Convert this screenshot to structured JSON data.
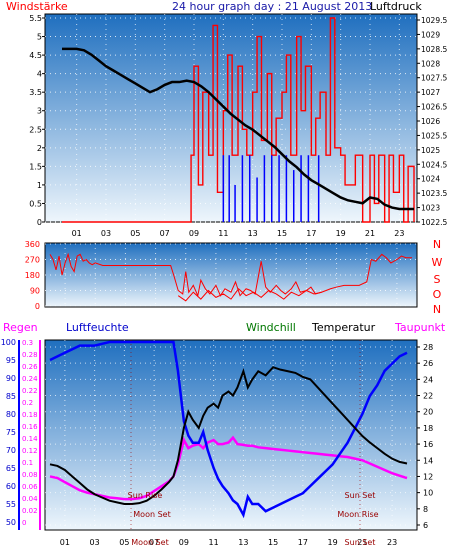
{
  "header": {
    "left_label": "Windstärke",
    "title": "24 hour graph day : 21 August 2013",
    "right_label": "Luftdruck"
  },
  "bottom_header": {
    "regen": "Regen",
    "luftfeuchte": "Luftfeuchte",
    "windchill": "Windchill",
    "temperatur": "Temperatur",
    "taupunkt": "Taupunkt"
  },
  "colors": {
    "wind": "#ff0000",
    "gust_blue": "#0000ff",
    "pressure": "#000000",
    "direction": "#ff0000",
    "humidity": "#0000ff",
    "temperature": "#000000",
    "windchill": "#008000",
    "dewpoint": "#ff00ff",
    "plot_top": "#1f6fbf",
    "plot_bottom": "#eef6fc",
    "title": "#1a1aa8"
  },
  "chart_data": [
    {
      "type": "line",
      "name": "wind_pressure",
      "x_ticks": [
        "01",
        "03",
        "05",
        "07",
        "09",
        "11",
        "13",
        "15",
        "17",
        "19",
        "21",
        "23"
      ],
      "left_axis": {
        "ticks": [
          "0",
          "0.5",
          "1",
          "1.5",
          "2",
          "2.5",
          "3",
          "3.5",
          "4",
          "4.5",
          "5",
          "5.5"
        ],
        "ylim": [
          0,
          5.5
        ]
      },
      "right_axis": {
        "ticks": [
          "1022.5",
          "1023",
          "1023.5",
          "1024",
          "1024.5",
          "1025",
          "1025.5",
          "1026",
          "1026.5",
          "1027",
          "1027.5",
          "1028",
          "1028.5",
          "1029",
          "1029.5"
        ],
        "ylim": [
          1022.5,
          1029.5
        ]
      },
      "pressure": {
        "x": [
          0,
          0.5,
          1,
          1.5,
          2,
          2.5,
          3,
          3.5,
          4,
          4.5,
          5,
          5.5,
          6,
          6.5,
          7,
          7.5,
          8,
          8.5,
          9,
          9.5,
          10,
          10.5,
          11,
          11.5,
          12,
          12.5,
          13,
          13.5,
          14,
          14.5,
          15,
          15.5,
          16,
          16.5,
          17,
          17.5,
          18,
          18.5,
          19,
          19.5,
          20,
          20.5,
          21,
          21.5,
          22,
          22.5,
          23,
          23.5,
          24
        ],
        "y": [
          1028.5,
          1028.5,
          1028.5,
          1028.45,
          1028.3,
          1028.1,
          1027.9,
          1027.75,
          1027.6,
          1027.45,
          1027.3,
          1027.15,
          1027.0,
          1027.1,
          1027.25,
          1027.35,
          1027.35,
          1027.4,
          1027.35,
          1027.2,
          1027.0,
          1026.75,
          1026.5,
          1026.25,
          1026.05,
          1025.85,
          1025.7,
          1025.5,
          1025.3,
          1025.1,
          1024.85,
          1024.6,
          1024.4,
          1024.15,
          1023.95,
          1023.8,
          1023.65,
          1023.5,
          1023.35,
          1023.25,
          1023.2,
          1023.15,
          1023.35,
          1023.3,
          1023.1,
          1023.0,
          1022.95,
          1022.95,
          1022.95
        ]
      },
      "wind": {
        "x": [
          0,
          8.5,
          8.8,
          9,
          9.3,
          9.6,
          10,
          10.3,
          10.6,
          11,
          11.3,
          11.6,
          12,
          12.3,
          12.6,
          13,
          13.3,
          13.6,
          14,
          14.3,
          14.6,
          15,
          15.3,
          15.6,
          16,
          16.3,
          16.6,
          17,
          17.3,
          17.6,
          18,
          18.3,
          18.6,
          19,
          19.3,
          20,
          20.5,
          21,
          21.3,
          21.6,
          22,
          22.3,
          22.6,
          23,
          23.3,
          23.6,
          24
        ],
        "y": [
          0,
          0,
          1.8,
          4.2,
          1.0,
          3.5,
          1.8,
          5.3,
          0.8,
          3.0,
          4.5,
          1.8,
          4.2,
          2.5,
          1.8,
          3.5,
          5.0,
          2.2,
          4.0,
          1.8,
          2.8,
          3.5,
          4.5,
          1.8,
          5.0,
          3.0,
          4.2,
          1.8,
          2.8,
          3.5,
          1.8,
          5.5,
          2.0,
          1.8,
          1.0,
          1.8,
          0,
          1.8,
          0.5,
          1.8,
          0,
          1.8,
          0.8,
          1.8,
          0,
          1.5,
          0
        ]
      },
      "gusts": {
        "x": [
          11,
          11.4,
          11.8,
          12.3,
          12.8,
          13.3,
          13.8,
          14.3,
          14.8,
          15.3,
          15.8,
          16.3,
          16.8,
          17.5
        ],
        "y": [
          1.8,
          1.8,
          1.0,
          1.8,
          1.8,
          1.2,
          1.8,
          1.8,
          1.8,
          1.8,
          1.4,
          1.8,
          1.8,
          1.8
        ]
      }
    },
    {
      "type": "line",
      "name": "wind_direction",
      "y_ticks": [
        "0",
        "90",
        "180",
        "270",
        "360"
      ],
      "ylim": [
        0,
        360
      ],
      "compass_labels": [
        "N",
        "W",
        "S",
        "O",
        "N"
      ],
      "direction": {
        "x": [
          0,
          0.2,
          0.4,
          0.6,
          0.8,
          1.0,
          1.2,
          1.4,
          1.6,
          1.8,
          2.0,
          2.2,
          2.4,
          2.6,
          2.8,
          3.0,
          3.5,
          4.0,
          4.5,
          5.0,
          5.5,
          6.0,
          6.5,
          7.0,
          7.5,
          8.0,
          8.2,
          8.5,
          8.8,
          9.0,
          9.2,
          9.5,
          9.8,
          10.0,
          10.3,
          10.6,
          11.0,
          11.3,
          11.6,
          12.0,
          12.3,
          12.6,
          13.0,
          13.3,
          13.6,
          14.0,
          14.3,
          14.6,
          15.0,
          15.3,
          15.6,
          16.0,
          16.3,
          16.6,
          17.0,
          17.3,
          17.6,
          18.0,
          18.3,
          18.6,
          19.0,
          19.5,
          20.0,
          20.5,
          21.0,
          21.3,
          21.6,
          22.0,
          22.3,
          22.6,
          23.0,
          23.3,
          23.6,
          24.0
        ],
        "y": [
          300,
          270,
          210,
          290,
          180,
          250,
          300,
          230,
          200,
          290,
          300,
          260,
          270,
          250,
          240,
          250,
          235,
          235,
          235,
          235,
          235,
          235,
          235,
          235,
          235,
          235,
          180,
          90,
          70,
          200,
          80,
          120,
          60,
          150,
          100,
          70,
          120,
          60,
          100,
          80,
          140,
          60,
          100,
          90,
          70,
          260,
          110,
          80,
          120,
          90,
          70,
          100,
          140,
          80,
          90,
          110,
          70,
          80,
          90,
          100,
          110,
          120,
          120,
          120,
          140,
          270,
          260,
          300,
          280,
          250,
          270,
          290,
          280,
          280
        ]
      },
      "direction_low": {
        "x": [
          8.5,
          9.0,
          9.5,
          10.0,
          10.5,
          11.0,
          11.5,
          12.0,
          12.5,
          13.0,
          13.5,
          14.0,
          14.5,
          15.0,
          15.5,
          16.0,
          16.5,
          17.0,
          17.5,
          18.0
        ],
        "y": [
          60,
          30,
          80,
          40,
          90,
          50,
          70,
          40,
          100,
          60,
          80,
          50,
          90,
          70,
          40,
          80,
          60,
          90,
          70,
          80
        ]
      }
    },
    {
      "type": "line",
      "name": "temperature_humidity",
      "humidity_axis": {
        "ticks": [
          "50",
          "55",
          "60",
          "65",
          "70",
          "75",
          "80",
          "85",
          "90",
          "95",
          "100"
        ],
        "ylim": [
          50,
          100
        ]
      },
      "rain_axis": {
        "ticks": [
          "0",
          "0.02",
          "0.04",
          "0.06",
          "0.08",
          "0.1",
          "0.12",
          "0.14",
          "0.16",
          "0.18",
          "0.2",
          "0.22",
          "0.24",
          "0.26",
          "0.28",
          "0.3"
        ],
        "ylim": [
          0,
          0.3
        ]
      },
      "temp_axis": {
        "ticks": [
          "6",
          "8",
          "10",
          "12",
          "14",
          "16",
          "18",
          "20",
          "22",
          "24",
          "26",
          "28"
        ],
        "ylim": [
          6,
          28
        ]
      },
      "x_ticks": [
        "01",
        "03",
        "05",
        "07",
        "09",
        "11",
        "13",
        "15",
        "17",
        "19",
        "21",
        "23"
      ],
      "annotations": [
        "Sun Rise",
        "Moon Set",
        "Moon Set",
        "Sun Set",
        "Moon Rise",
        "Sun Set"
      ],
      "temperature": {
        "x": [
          0,
          0.5,
          1,
          1.5,
          2,
          2.5,
          3,
          3.5,
          4,
          4.5,
          5,
          5.5,
          6,
          6.5,
          7,
          7.5,
          8,
          8.3,
          8.6,
          9,
          9.3,
          9.6,
          10,
          10.3,
          10.6,
          11,
          11.3,
          11.6,
          12,
          12.3,
          12.6,
          13,
          13.3,
          13.6,
          14,
          14.5,
          15,
          15.5,
          16,
          16.5,
          17,
          17.5,
          18,
          18.5,
          19,
          19.5,
          20,
          20.5,
          21,
          21.5,
          22,
          22.5,
          23,
          23.5,
          24
        ],
        "y": [
          13.5,
          13.3,
          12.8,
          12.0,
          11.2,
          10.4,
          9.8,
          9.4,
          9.0,
          8.8,
          8.6,
          8.6,
          8.7,
          9.0,
          9.6,
          10.4,
          11.3,
          12.0,
          14.0,
          18.0,
          20.0,
          19.0,
          18.0,
          19.5,
          20.5,
          21.0,
          20.5,
          22.0,
          22.5,
          22.0,
          23.0,
          25.0,
          23.0,
          24.0,
          25.0,
          24.5,
          25.5,
          25.2,
          25.0,
          24.8,
          24.3,
          24.0,
          23.0,
          22.0,
          21.0,
          20.0,
          19.0,
          18.0,
          17.0,
          16.2,
          15.5,
          14.8,
          14.2,
          13.8,
          13.6
        ]
      },
      "humidity": {
        "x": [
          0,
          0.5,
          1,
          1.5,
          2,
          2.5,
          3,
          3.5,
          4,
          4.5,
          5,
          5.5,
          6,
          6.5,
          7,
          7.5,
          8,
          8.3,
          8.6,
          9,
          9.3,
          9.6,
          10,
          10.3,
          10.6,
          11,
          11.3,
          11.6,
          12,
          12.3,
          12.6,
          13,
          13.3,
          13.6,
          14,
          14.5,
          15,
          15.5,
          16,
          16.5,
          17,
          17.5,
          18,
          18.5,
          19,
          19.5,
          20,
          20.5,
          21,
          21.5,
          22,
          22.5,
          23,
          23.5,
          24
        ],
        "y": [
          95,
          96,
          97,
          98,
          99,
          99,
          99,
          99.5,
          100,
          100,
          100,
          100,
          100,
          100,
          100,
          100,
          100,
          100,
          92,
          78,
          74,
          72,
          72,
          75,
          70,
          65,
          62,
          60,
          58,
          56,
          55,
          52,
          57,
          55,
          55,
          53,
          54,
          55,
          56,
          57,
          58,
          60,
          62,
          64,
          66,
          69,
          72,
          76,
          80,
          85,
          88,
          92,
          94,
          96,
          97
        ]
      },
      "dewpoint": {
        "x": [
          0,
          0.5,
          1,
          1.5,
          2,
          2.5,
          3,
          3.5,
          4,
          4.5,
          5,
          5.5,
          6,
          6.5,
          7,
          7.5,
          8,
          8.3,
          8.6,
          9,
          9.3,
          9.6,
          10,
          10.3,
          10.6,
          11,
          11.3,
          11.6,
          12,
          12.3,
          12.6,
          13,
          13.3,
          13.6,
          14,
          14.5,
          15,
          15.5,
          16,
          16.5,
          17,
          17.5,
          18,
          18.5,
          19,
          19.5,
          20,
          20.5,
          21,
          21.5,
          22,
          22.5,
          23,
          23.5,
          24
        ],
        "y": [
          12.0,
          11.8,
          11.3,
          10.8,
          10.3,
          10.0,
          9.8,
          9.6,
          9.4,
          9.3,
          9.2,
          9.2,
          9.3,
          9.6,
          10.2,
          10.8,
          11.4,
          12.0,
          13.5,
          16.5,
          15.5,
          15.8,
          16.0,
          15.5,
          16.2,
          16.5,
          16.0,
          16.0,
          16.2,
          16.8,
          16.0,
          15.9,
          15.8,
          15.8,
          15.6,
          15.5,
          15.4,
          15.3,
          15.2,
          15.1,
          15.0,
          14.9,
          14.8,
          14.7,
          14.6,
          14.5,
          14.4,
          14.2,
          14.0,
          13.6,
          13.2,
          12.8,
          12.4,
          12.1,
          11.8
        ]
      }
    }
  ]
}
